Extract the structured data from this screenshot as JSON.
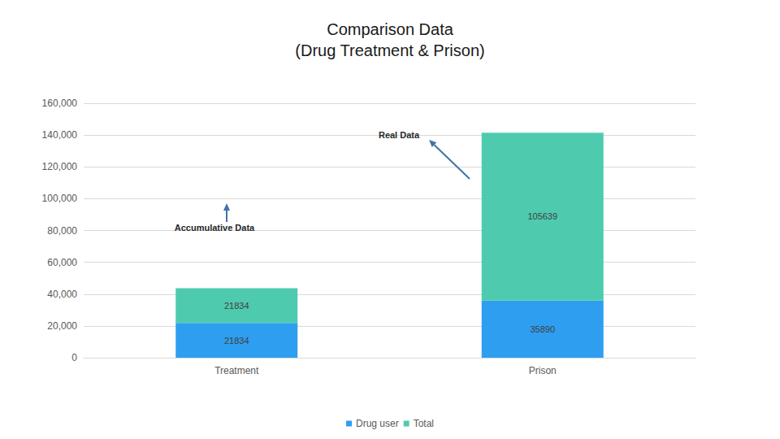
{
  "chart_data": {
    "type": "bar",
    "title": "Comparison Data\n(Drug Treatment & Prison)",
    "categories": [
      "Treatment",
      "Prison"
    ],
    "series": [
      {
        "name": "Drug user",
        "color": "#2e9ef0",
        "values": [
          21834,
          35890
        ]
      },
      {
        "name": "Total",
        "color": "#4ecbae",
        "values": [
          21834,
          105639
        ]
      }
    ],
    "stacked": true,
    "data_labels": true,
    "ylim": [
      0,
      160000
    ],
    "yticks": [
      0,
      20000,
      40000,
      60000,
      80000,
      100000,
      120000,
      140000,
      160000
    ],
    "grid": true,
    "legend": "bottom",
    "annotations": [
      "Accumulative Data",
      "Real Data"
    ]
  }
}
